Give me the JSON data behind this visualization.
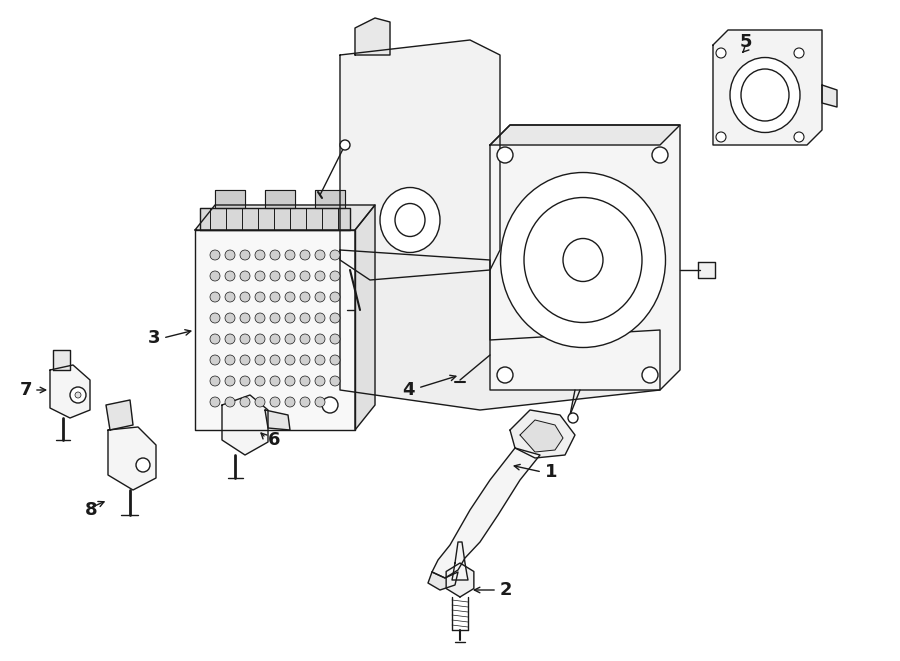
{
  "bg_color": "#ffffff",
  "line_color": "#1a1a1a",
  "figsize": [
    9.0,
    6.61
  ],
  "dpi": 100,
  "label_fontsize": 13,
  "lw": 1.0
}
